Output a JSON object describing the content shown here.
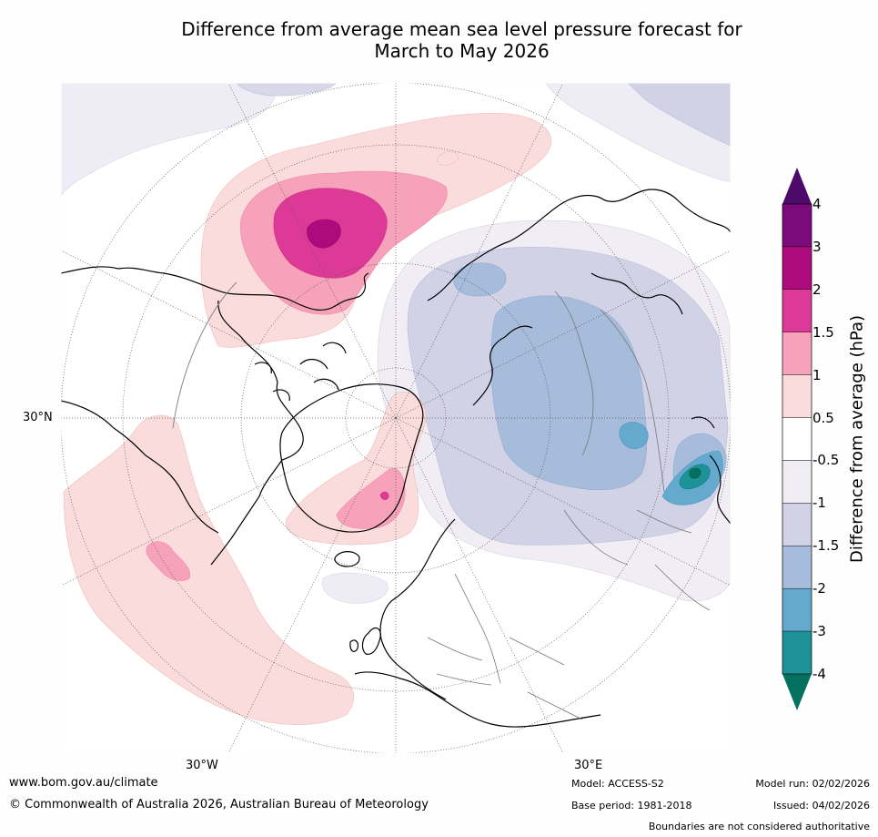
{
  "title": {
    "line1": "Difference from average mean sea level pressure forecast for",
    "line2": "March to May 2026"
  },
  "map": {
    "lon_labels": [
      "30°W",
      "30°E"
    ],
    "lat_label": "30°N"
  },
  "colorbar": {
    "title": "Difference from average (hPa)",
    "ticks": [
      "4",
      "3",
      "2",
      "1.5",
      "1",
      "0.5",
      "-0.5",
      "-1",
      "-1.5",
      "-2",
      "-3",
      "-4"
    ],
    "colors": [
      "#4d0a6b",
      "#7b0a7a",
      "#ad0a7d",
      "#dd3a98",
      "#f7a2bb",
      "#fbdcdc",
      "#ffffff",
      "#f0edf4",
      "#d1d2e5",
      "#a7bcda",
      "#66a9cf",
      "#1d9297",
      "#04705e"
    ]
  },
  "footer": {
    "website": "www.bom.gov.au/climate",
    "copyright": "© Commonwealth of Australia 2026, Australian Bureau of Meteorology",
    "model": "Model: ACCESS-S2",
    "base_period": "Base period: 1981-2018",
    "model_run": "Model run: 02/02/2026",
    "issued": "Issued: 04/02/2026",
    "disclaimer": "Boundaries are not considered authoritative"
  }
}
